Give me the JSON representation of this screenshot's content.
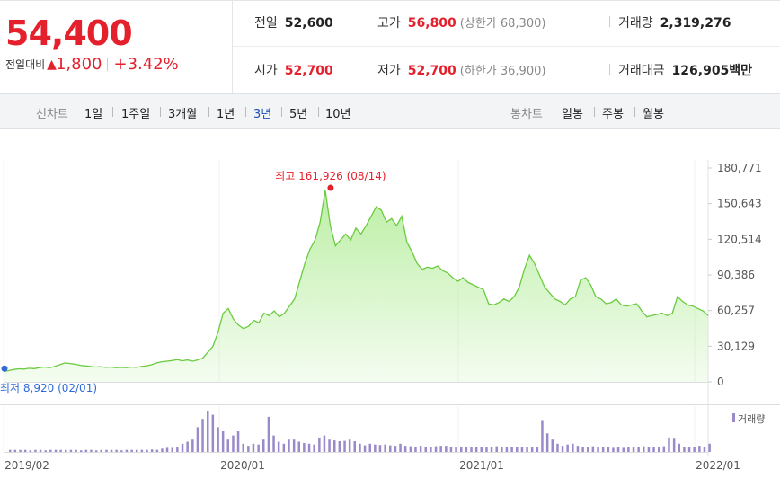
{
  "quote": {
    "price": "54,400",
    "change_label": "전일대비",
    "change_arrow": "▲",
    "change_amount": "1,800",
    "change_percent": "+3.42%",
    "prev_close_label": "전일",
    "prev_close": "52,600",
    "open_label": "시가",
    "open": "52,700",
    "high_label": "고가",
    "high": "56,800",
    "upper_limit": "(상한가 68,300)",
    "low_label": "저가",
    "low": "52,700",
    "lower_limit": "(하한가 36,900)",
    "volume_label": "거래량",
    "volume": "2,319,276",
    "trade_value_label": "거래대금",
    "trade_value": "126,905",
    "trade_value_unit": "백만",
    "colors": {
      "up": "#e5202d",
      "active_tab": "#1f52b9"
    }
  },
  "toolbar": {
    "line_chart_label": "선차트",
    "periods": [
      "1일",
      "1주일",
      "3개월",
      "1년",
      "3년",
      "5년",
      "10년"
    ],
    "active_period": "3년",
    "candle_chart_label": "봉차트",
    "candle_periods": [
      "일봉",
      "주봉",
      "월봉"
    ]
  },
  "chart_data": {
    "type": "area",
    "y_ticks": [
      "180,771",
      "150,643",
      "120,514",
      "90,386",
      "60,257",
      "30,129",
      "0"
    ],
    "ylim": [
      0,
      180771
    ],
    "x_ticks": [
      "2019/02",
      "2020/01",
      "2021/01",
      "2022/01"
    ],
    "max_annotation": "최고 161,926 (08/14)",
    "min_annotation": "최저 8,920 (02/01)",
    "volume_legend": "거래량",
    "fill_color": "#b8eea0",
    "line_color": "#6acb3f",
    "volume_color": "#9a8ac9",
    "series": [
      {
        "values": [
          8920,
          9500,
          10500,
          11000,
          10800,
          11500,
          11200,
          12000,
          12500,
          12000,
          13000,
          14500,
          16000,
          15500,
          15000,
          14000,
          13500,
          13000,
          12500,
          12800,
          12200,
          12500,
          12000,
          12300,
          12000,
          12500,
          12200,
          13000,
          13500,
          14500,
          16000,
          17000,
          17500,
          18000,
          18800,
          17800,
          18500,
          17500,
          18500,
          20000,
          25000,
          30000,
          42000,
          58000,
          62000,
          53000,
          48000,
          45000,
          47000,
          52000,
          50000,
          58000,
          56000,
          60000,
          55000,
          58000,
          64000,
          70000,
          85000,
          100000,
          112000,
          120000,
          135000,
          161926,
          132000,
          115000,
          120000,
          125000,
          120000,
          130000,
          125000,
          132000,
          140000,
          148000,
          145000,
          135000,
          138000,
          132000,
          140000,
          118000,
          110000,
          100000,
          95000,
          97000,
          96000,
          98000,
          94000,
          92000,
          88000,
          85000,
          88000,
          84000,
          82000,
          80000,
          78000,
          66000,
          65000,
          67000,
          70000,
          68000,
          72000,
          80000,
          95000,
          107000,
          100000,
          90000,
          80000,
          75000,
          70000,
          68000,
          65000,
          70000,
          72000,
          86000,
          88000,
          82000,
          72000,
          70000,
          66000,
          67000,
          70000,
          65000,
          64000,
          65000,
          66000,
          60000,
          55000,
          56000,
          57000,
          58000,
          56000,
          58000,
          72000,
          68000,
          65000,
          64000,
          62000,
          60000,
          56000
        ]
      },
      {
        "name": "거래량",
        "values": [
          0.05,
          0.05,
          0.05,
          0.05,
          0.04,
          0.05,
          0.05,
          0.04,
          0.05,
          0.05,
          0.05,
          0.05,
          0.05,
          0.05,
          0.04,
          0.05,
          0.05,
          0.04,
          0.05,
          0.05,
          0.05,
          0.05,
          0.04,
          0.05,
          0.05,
          0.05,
          0.05,
          0.05,
          0.06,
          0.05,
          0.08,
          0.1,
          0.1,
          0.12,
          0.2,
          0.25,
          0.3,
          0.6,
          0.8,
          1.0,
          0.9,
          0.6,
          0.5,
          0.3,
          0.4,
          0.5,
          0.2,
          0.15,
          0.2,
          0.18,
          0.3,
          0.85,
          0.4,
          0.25,
          0.2,
          0.3,
          0.3,
          0.25,
          0.22,
          0.2,
          0.18,
          0.35,
          0.4,
          0.3,
          0.28,
          0.26,
          0.27,
          0.3,
          0.26,
          0.2,
          0.16,
          0.2,
          0.18,
          0.17,
          0.18,
          0.16,
          0.15,
          0.2,
          0.15,
          0.14,
          0.12,
          0.15,
          0.13,
          0.12,
          0.14,
          0.15,
          0.15,
          0.13,
          0.12,
          0.13,
          0.12,
          0.11,
          0.12,
          0.13,
          0.12,
          0.13,
          0.14,
          0.13,
          0.12,
          0.12,
          0.11,
          0.12,
          0.12,
          0.11,
          0.12,
          0.75,
          0.45,
          0.3,
          0.2,
          0.15,
          0.18,
          0.2,
          0.15,
          0.12,
          0.13,
          0.14,
          0.12,
          0.12,
          0.11,
          0.1,
          0.12,
          0.1,
          0.12,
          0.13,
          0.12,
          0.14,
          0.13,
          0.11,
          0.12,
          0.14,
          0.35,
          0.32,
          0.2,
          0.12,
          0.12,
          0.13,
          0.15,
          0.12,
          0.2
        ]
      }
    ]
  }
}
